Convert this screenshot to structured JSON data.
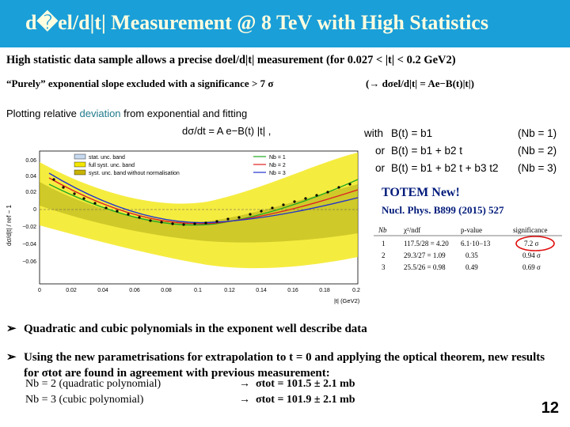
{
  "title": "d�el/d|t| Measurement @ 8 TeV with High Statistics",
  "intro": "High statistic data sample allows a precise dσel/d|t| measurement (for 0.027 < |t| < 0.2 GeV2)",
  "purely": "“Purely” exponential slope excluded with a significance > 7 σ",
  "purely_formula": "(→ dσel/d|t| = Ae−B(t)|t|)",
  "plotting_line1_a": "Plotting relative ",
  "plotting_line1_hl": "deviation",
  "plotting_line1_b": " from exponential and fitting",
  "plotting_formula": "dσ/dt = A e−B(t) |t| ,",
  "models": [
    {
      "lead": "with",
      "expr": "B(t) = b1",
      "nb": "(Nb = 1)"
    },
    {
      "lead": "or",
      "expr": "B(t) = b1 + b2 t",
      "nb": "(Nb = 2)"
    },
    {
      "lead": "or",
      "expr": "B(t) = b1 + b2 t + b3 t2",
      "nb": "(Nb = 3)"
    }
  ],
  "totem": "TOTEM New!",
  "reference": "Nucl. Phys. B899 (2015) 527",
  "legend": [
    "stat. unc. band",
    "full syst. unc. band",
    "syst. unc. band without normalisation",
    "Nb = 1",
    "Nb = 2",
    "Nb = 3"
  ],
  "axis": {
    "x_label": "|t| (GeV2)",
    "x_ticks": [
      "0",
      "0.02",
      "0.04",
      "0.06",
      "0.08",
      "0.1",
      "0.12",
      "0.14",
      "0.16",
      "0.18",
      "0.2"
    ],
    "y_label": "dσ/d|t| / ref − 1",
    "y_ticks": [
      "0.06",
      "0.04",
      "0.02",
      "0",
      "−0.02",
      "−0.04",
      "−0.06"
    ]
  },
  "table": {
    "headers": [
      "Nb",
      "χ²/ndf",
      "p-value",
      "significance"
    ],
    "rows": [
      [
        "1",
        "117.5/28 = 4.20",
        "6.1·10−13",
        "7.2 σ"
      ],
      [
        "2",
        "29.3/27 = 1.09",
        "0.35",
        "0.94 σ"
      ],
      [
        "3",
        "25.5/26 = 0.98",
        "0.49",
        "0.69 σ"
      ]
    ]
  },
  "bullets": [
    "Quadratic and cubic polynomials in the exponent well describe data",
    "Using the new parametrisations for extrapolation to t = 0 and applying the optical theorem, new results for σtot are found in agreement with previous measurement:"
  ],
  "results": [
    {
      "label": "Nb = 2 (quadratic polynomial)",
      "value": "σtot = 101.5 ± 2.1 mb"
    },
    {
      "label": "Nb = 3 (cubic polynomial)",
      "value": "σtot = 101.9 ± 2.1 mb"
    }
  ],
  "slide_number": "12",
  "colors": {
    "title_bg": "#1a9fd8",
    "title_text": "#fffde0",
    "accent": "#c8102e",
    "teal": "#1f7a8c",
    "nb1": "#22aa22",
    "nb2": "#dd2222",
    "nb3": "#2233cc",
    "band": "#f2e600"
  }
}
